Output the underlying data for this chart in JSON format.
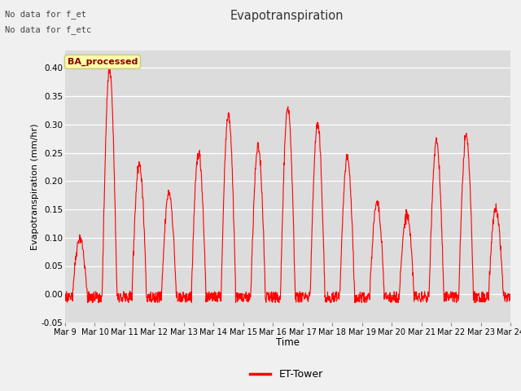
{
  "title": "Evapotranspiration",
  "ylabel": "Evapotranspiration (mm/hr)",
  "xlabel": "Time",
  "ylim": [
    -0.05,
    0.43
  ],
  "yticks": [
    -0.05,
    0.0,
    0.05,
    0.1,
    0.15,
    0.2,
    0.25,
    0.3,
    0.35,
    0.4
  ],
  "line_color": "red",
  "line_width": 0.8,
  "bg_color": "#f0f0f0",
  "plot_bg_color": "#dcdcdc",
  "title_color": "#333333",
  "no_data_text1": "No data for f_et",
  "no_data_text2": "No data for f_etc",
  "ba_processed_label": "BA_processed",
  "legend_label": "ET-Tower",
  "xtick_labels": [
    "Mar 9",
    "Mar 10",
    "Mar 11",
    "Mar 12",
    "Mar 13",
    "Mar 14",
    "Mar 15",
    "Mar 16",
    "Mar 17",
    "Mar 18",
    "Mar 19",
    "Mar 20",
    "Mar 21",
    "Mar 22",
    "Mar 23",
    "Mar 24"
  ],
  "peaks": [
    0.1,
    0.4,
    0.23,
    0.18,
    0.25,
    0.32,
    0.26,
    0.33,
    0.3,
    0.24,
    0.16,
    0.14,
    0.27,
    0.28,
    0.15
  ],
  "n_days": 15,
  "points_per_day": 96
}
